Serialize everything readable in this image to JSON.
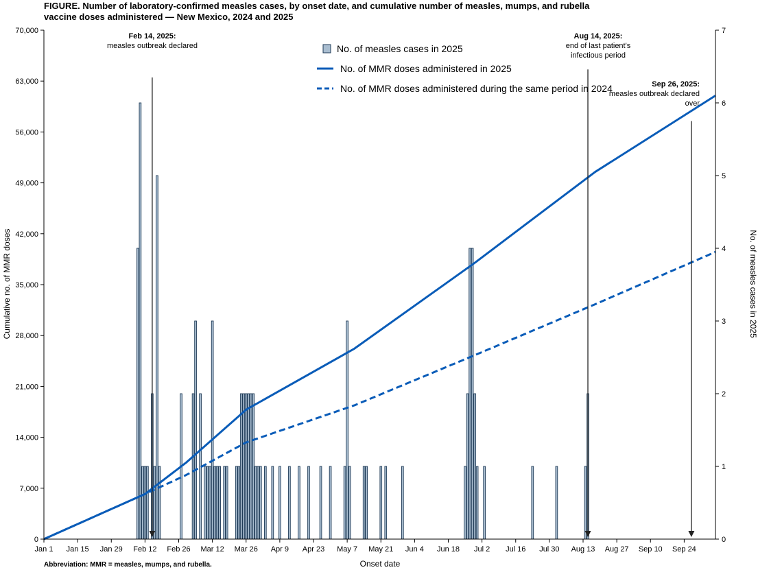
{
  "title": "FIGURE. Number of laboratory-confirmed measles cases, by onset date, and cumulative number of measles, mumps, and rubella vaccine doses administered — New Mexico, 2024 and 2025",
  "footnote": "Abbreviation: MMR = measles, mumps, and rubella.",
  "chart_data": {
    "type": "bar",
    "xlabel": "Onset date",
    "ylabel_left": "Cumulative no. of MMR doses",
    "ylabel_right": "No. of measles cases in 2025",
    "ylim_left": [
      0,
      70000
    ],
    "ylim_right": [
      0,
      7
    ],
    "xlim_day": [
      1,
      280
    ],
    "y_ticks_left": [
      "0",
      "7,000",
      "14,000",
      "21,000",
      "28,000",
      "35,000",
      "42,000",
      "49,000",
      "56,000",
      "63,000",
      "70,000"
    ],
    "y_ticks_right": [
      "0",
      "1",
      "2",
      "3",
      "4",
      "5",
      "6",
      "7"
    ],
    "x_ticks": [
      {
        "label": "Jan 1",
        "day": 1
      },
      {
        "label": "Jan 15",
        "day": 15
      },
      {
        "label": "Jan 29",
        "day": 29
      },
      {
        "label": "Feb 12",
        "day": 43
      },
      {
        "label": "Feb 26",
        "day": 57
      },
      {
        "label": "Mar 12",
        "day": 71
      },
      {
        "label": "Mar 26",
        "day": 85
      },
      {
        "label": "Apr 9",
        "day": 99
      },
      {
        "label": "Apr 23",
        "day": 113
      },
      {
        "label": "May 7",
        "day": 127
      },
      {
        "label": "May 21",
        "day": 141
      },
      {
        "label": "Jun 4",
        "day": 155
      },
      {
        "label": "Jun 18",
        "day": 169
      },
      {
        "label": "Jul 2",
        "day": 183
      },
      {
        "label": "Jul 16",
        "day": 197
      },
      {
        "label": "Jul 30",
        "day": 211
      },
      {
        "label": "Aug 13",
        "day": 225
      },
      {
        "label": "Aug 27",
        "day": 239
      },
      {
        "label": "Sep 10",
        "day": 253
      },
      {
        "label": "Sep 24",
        "day": 267
      }
    ],
    "bars": {
      "name": "No. of measles cases in 2025",
      "color": "#a9bdd0",
      "stroke": "#1f3b57",
      "days": [
        40,
        41,
        42,
        43,
        44,
        46,
        47,
        48,
        49,
        58,
        63,
        64,
        66,
        68,
        69,
        70,
        71,
        72,
        73,
        74,
        76,
        77,
        81,
        82,
        83,
        84,
        85,
        86,
        87,
        88,
        89,
        90,
        91,
        93,
        96,
        99,
        103,
        107,
        111,
        116,
        120,
        126,
        127,
        128,
        134,
        135,
        141,
        143,
        150,
        176,
        177,
        178,
        179,
        180,
        181,
        184,
        204,
        214,
        226,
        227
      ],
      "values": [
        4,
        6,
        1,
        1,
        1,
        2,
        1,
        5,
        1,
        2,
        2,
        3,
        2,
        1,
        1,
        1,
        3,
        1,
        1,
        1,
        1,
        1,
        1,
        1,
        2,
        2,
        2,
        2,
        2,
        2,
        1,
        1,
        1,
        1,
        1,
        1,
        1,
        1,
        1,
        1,
        1,
        1,
        3,
        1,
        1,
        1,
        1,
        1,
        1,
        1,
        2,
        4,
        4,
        2,
        1,
        1,
        1,
        1,
        1,
        2
      ]
    },
    "series": [
      {
        "name": "No. of MMR doses administered in 2025",
        "color": "#0a5cb8",
        "style": "solid",
        "x": [
          1,
          43,
          60,
          85,
          130,
          180,
          230,
          280
        ],
        "y": [
          0,
          6200,
          10500,
          17800,
          26200,
          38000,
          50500,
          61000
        ]
      },
      {
        "name": "No. of MMR doses administered during the same period in 2024",
        "color": "#0a5cb8",
        "style": "dashed",
        "x": [
          1,
          43,
          60,
          85,
          130,
          180,
          230,
          280
        ],
        "y": [
          0,
          6200,
          8800,
          13300,
          18400,
          25300,
          32300,
          39500
        ]
      }
    ],
    "annotations": [
      {
        "day": 46,
        "heading": "Feb 14, 2025:",
        "lines": [
          "measles outbreak declared"
        ],
        "arrow_top": 63500
      },
      {
        "day": 227,
        "heading": "Aug 14, 2025:",
        "lines": [
          "end of last patient's",
          "infectious period"
        ],
        "arrow_top": 64600
      },
      {
        "day": 270,
        "heading": "Sep 26, 2025:",
        "lines": [
          "measles outbreak declared",
          "over"
        ],
        "arrow_top": 57500
      }
    ]
  }
}
